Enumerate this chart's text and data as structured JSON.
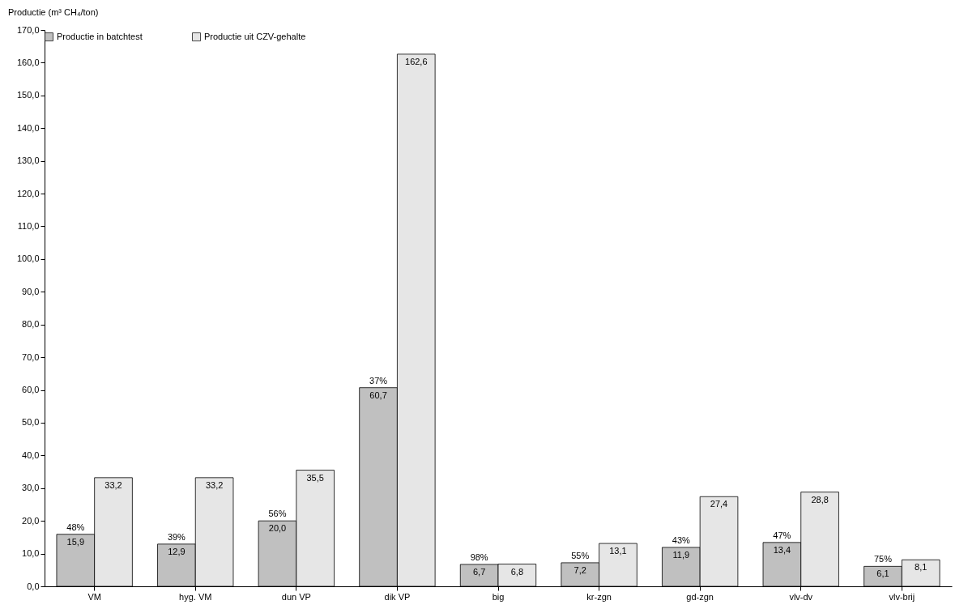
{
  "chart_data": {
    "type": "bar",
    "ylabel": "Productie (m³ CH₄/ton)",
    "categories": [
      "VM",
      "hyg. VM",
      "dun VP",
      "dik VP",
      "big",
      "kr-zgn",
      "gd-zgn",
      "vlv-dv",
      "vlv-brij"
    ],
    "series": [
      {
        "name": "Productie in batchtest",
        "color": "#c0c0c0",
        "values": [
          15.9,
          12.9,
          20.0,
          60.7,
          6.7,
          7.2,
          11.9,
          13.4,
          6.1
        ],
        "value_labels": [
          "15,9",
          "12,9",
          "20,0",
          "60,7",
          "6,7",
          "7,2",
          "11,9",
          "13,4",
          "6,1"
        ]
      },
      {
        "name": "Productie uit CZV-gehalte",
        "color": "#e6e6e6",
        "values": [
          33.2,
          33.2,
          35.5,
          162.6,
          6.8,
          13.1,
          27.4,
          28.8,
          8.1
        ],
        "value_labels": [
          "33,2",
          "33,2",
          "35,5",
          "162,6",
          "6,8",
          "13,1",
          "27,4",
          "28,8",
          "8,1"
        ]
      }
    ],
    "annotations": [
      {
        "text": "48%",
        "x": "VM",
        "y": 15.9
      },
      {
        "text": "39%",
        "x": "hyg. VM",
        "y": 12.9
      },
      {
        "text": "56%",
        "x": "dun VP",
        "y": 20.0
      },
      {
        "text": "37%",
        "x": "dik VP",
        "y": 60.7
      },
      {
        "text": "98%",
        "x": "big",
        "y": 6.7
      },
      {
        "text": "55%",
        "x": "kr-zgn",
        "y": 7.2
      },
      {
        "text": "43%",
        "x": "gd-zgn",
        "y": 11.9
      },
      {
        "text": "47%",
        "x": "vlv-dv",
        "y": 13.4
      },
      {
        "text": "75%",
        "x": "vlv-brij",
        "y": 6.1
      }
    ],
    "ylim": [
      0,
      170
    ],
    "yticks": [
      {
        "value": 0,
        "label": "0,0"
      },
      {
        "value": 10,
        "label": "10,0"
      },
      {
        "value": 20,
        "label": "20,0"
      },
      {
        "value": 30,
        "label": "30,0"
      },
      {
        "value": 40,
        "label": "40,0"
      },
      {
        "value": 50,
        "label": "50,0"
      },
      {
        "value": 60,
        "label": "60,0"
      },
      {
        "value": 70,
        "label": "70,0"
      },
      {
        "value": 80,
        "label": "80,0"
      },
      {
        "value": 90,
        "label": "90,0"
      },
      {
        "value": 100,
        "label": "100,0"
      },
      {
        "value": 110,
        "label": "110,0"
      },
      {
        "value": 120,
        "label": "120,0"
      },
      {
        "value": 130,
        "label": "130,0"
      },
      {
        "value": 140,
        "label": "140,0"
      },
      {
        "value": 150,
        "label": "150,0"
      },
      {
        "value": 160,
        "label": "160,0"
      },
      {
        "value": 170,
        "label": "170,0"
      }
    ],
    "grid": false,
    "legend": "top"
  }
}
